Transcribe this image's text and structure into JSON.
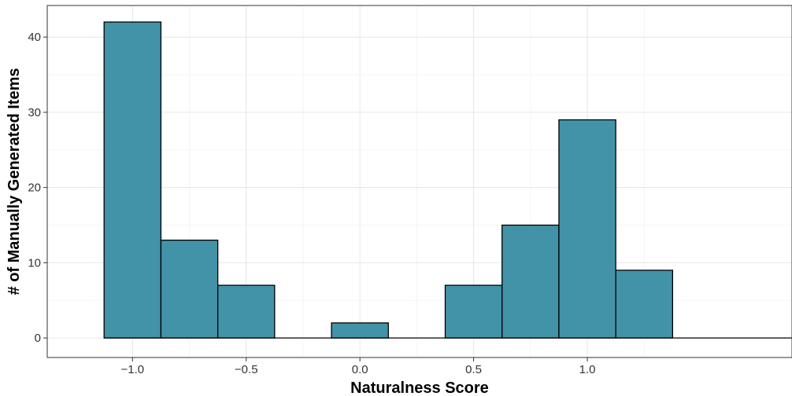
{
  "chart_data": {
    "type": "bar",
    "subtype": "histogram",
    "xlabel": "Naturalness Score",
    "ylabel": "# of Manually Generated Items",
    "bin_width": 0.25,
    "bins": [
      {
        "x_start": -1.125,
        "x_end": -0.875,
        "count": 42
      },
      {
        "x_start": -0.875,
        "x_end": -0.625,
        "count": 13
      },
      {
        "x_start": -0.625,
        "x_end": -0.375,
        "count": 7
      },
      {
        "x_start": -0.375,
        "x_end": -0.125,
        "count": 0
      },
      {
        "x_start": -0.125,
        "x_end": 0.125,
        "count": 2
      },
      {
        "x_start": 0.125,
        "x_end": 0.375,
        "count": 0
      },
      {
        "x_start": 0.375,
        "x_end": 0.625,
        "count": 7
      },
      {
        "x_start": 0.625,
        "x_end": 0.875,
        "count": 15
      },
      {
        "x_start": 0.875,
        "x_end": 1.125,
        "count": 29
      },
      {
        "x_start": 1.125,
        "x_end": 1.375,
        "count": 9
      }
    ],
    "xlim": [
      -1.375,
      1.9
    ],
    "ylim": [
      -2.6,
      44.2
    ],
    "x_ticks": [
      -1.0,
      -0.5,
      0.0,
      0.5,
      1.0
    ],
    "x_tick_labels": [
      "−1.0",
      "−0.5",
      "0.0",
      "0.5",
      "1.0"
    ],
    "y_ticks": [
      0,
      10,
      20,
      30,
      40
    ],
    "y_tick_labels": [
      "0",
      "10",
      "20",
      "30",
      "40"
    ],
    "bar_color": "#4393a8",
    "bar_edge_color": "#000000",
    "grid": true,
    "legend": "none"
  }
}
